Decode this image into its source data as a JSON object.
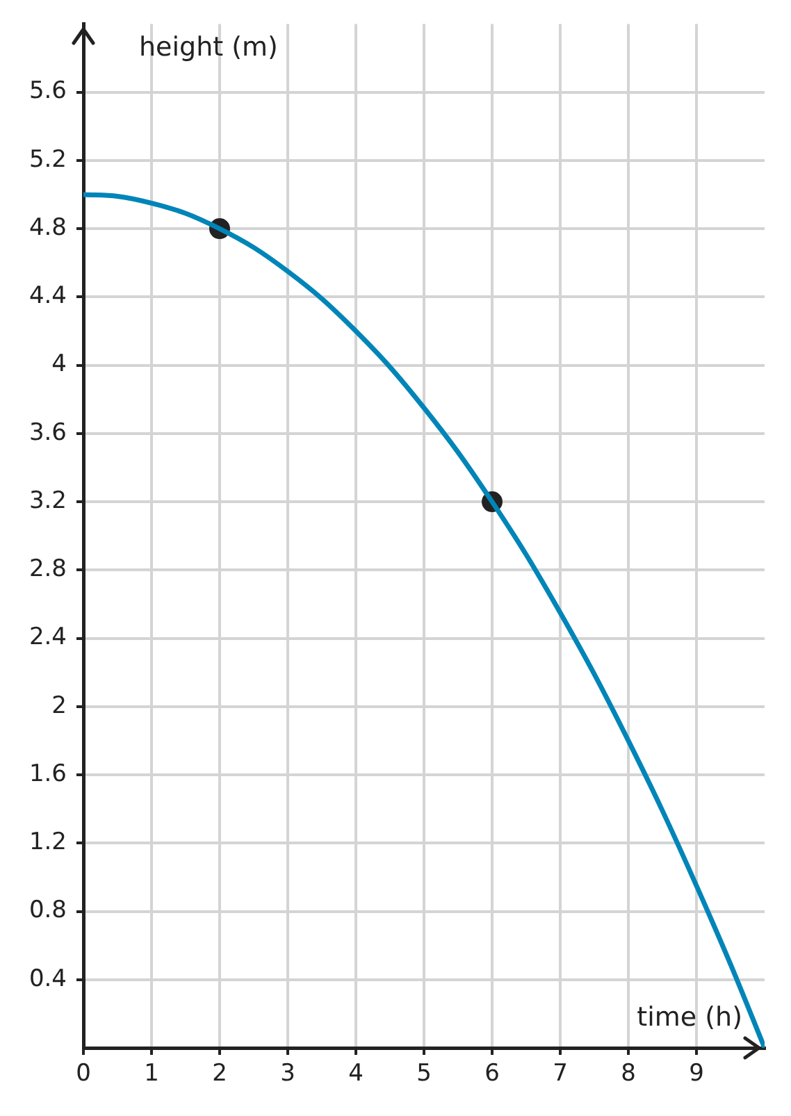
{
  "chart_data": {
    "type": "line",
    "xlabel": "time (h)",
    "ylabel": "height (m)",
    "series": [
      {
        "type": "line",
        "color": "#0085b8",
        "marker": "none",
        "x": [
          0,
          0.5,
          1,
          1.5,
          2,
          2.5,
          3,
          3.5,
          4,
          4.5,
          5,
          5.5,
          6,
          6.5,
          7,
          7.5,
          8,
          8.5,
          9,
          9.5,
          10
        ],
        "values": [
          5,
          4.99,
          4.95,
          4.89,
          4.8,
          4.69,
          4.55,
          4.39,
          4.2,
          3.99,
          3.75,
          3.49,
          3.2,
          2.89,
          2.55,
          2.19,
          1.8,
          1.39,
          0.95,
          0.49,
          0
        ]
      },
      {
        "type": "scatter",
        "color": "#222222",
        "marker": "circle",
        "x": [
          2,
          6
        ],
        "values": [
          4.8,
          3.2
        ]
      }
    ],
    "xlim": [
      0,
      10
    ],
    "ylim": [
      0,
      6
    ],
    "xticks": [
      0,
      1,
      2,
      3,
      4,
      5,
      6,
      7,
      8,
      9
    ],
    "yticks": [
      0.4,
      0.8,
      1.2,
      1.6,
      2,
      2.4,
      2.8,
      3.2,
      3.6,
      4,
      4.4,
      4.8,
      5.2,
      5.6
    ],
    "grid": true,
    "legend": false
  }
}
